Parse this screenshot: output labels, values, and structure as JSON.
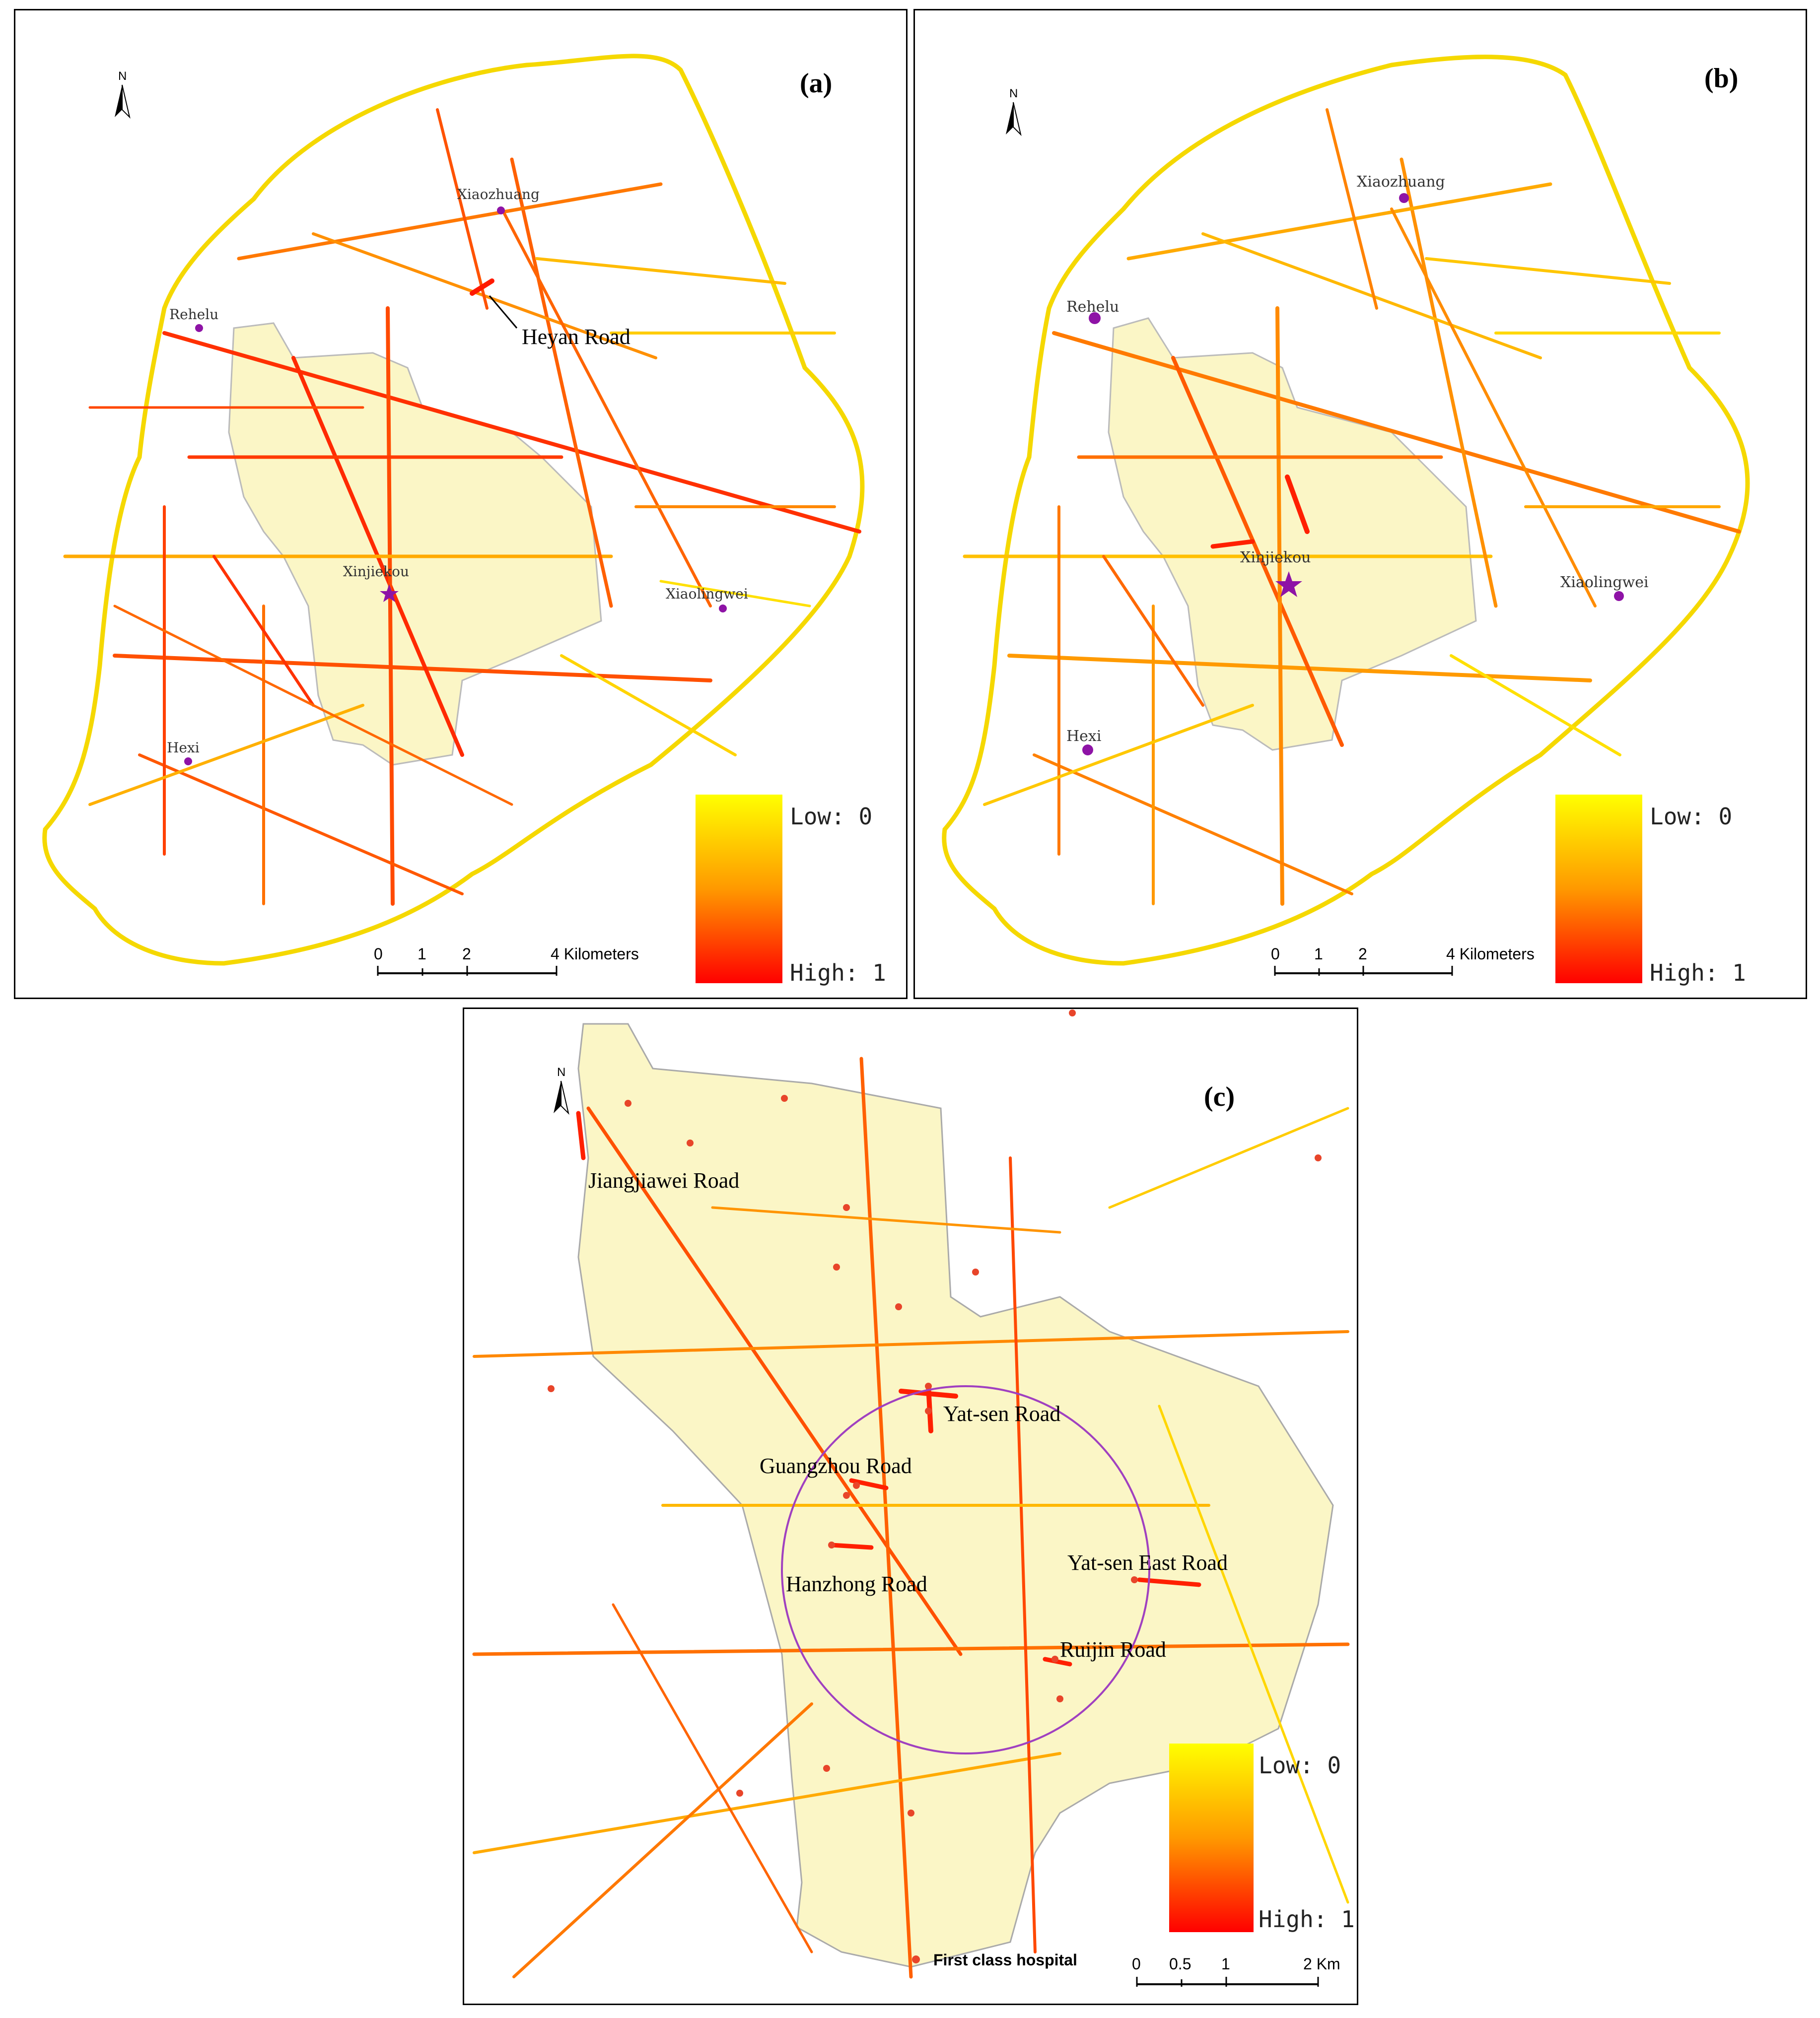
{
  "panel_a": {
    "label": "(a)",
    "north": "N",
    "places": [
      "Xiaozhuang",
      "Rehelu",
      "Xinjiekou",
      "Xiaolingwei",
      "Hexi"
    ],
    "road_label": "Heyan Road",
    "scalebar": [
      "0",
      "1",
      "2",
      "4 Kilometers"
    ],
    "legend": {
      "low": "Low: 0",
      "high": "High: 1"
    }
  },
  "panel_b": {
    "label": "(b)",
    "north": "N",
    "places": [
      "Xiaozhuang",
      "Rehelu",
      "Xinjiekou",
      "Xiaolingwei",
      "Hexi"
    ],
    "scalebar": [
      "0",
      "1",
      "2",
      "4 Kilometers"
    ],
    "legend": {
      "low": "Low: 0",
      "high": "High: 1"
    }
  },
  "panel_c": {
    "label": "(c)",
    "north": "N",
    "road_labels": [
      "Jiangjiawei Road",
      "Yat-sen Road",
      "Guangzhou Road",
      "Hanzhong Road",
      "Yat-sen East Road",
      "Ruijin Road"
    ],
    "hospital_legend": "First class hospital",
    "scalebar": [
      "0",
      "0.5",
      "1",
      "2 Km"
    ],
    "legend": {
      "low": "Low: 0",
      "high": "High: 1"
    }
  },
  "colors": {
    "low": "#ffff00",
    "mid": "#ff9900",
    "high": "#ff0000",
    "marker": "#8e13a6",
    "district": "#fbf6c6",
    "hospital": "#e8452a",
    "ring": "#a040c0"
  }
}
